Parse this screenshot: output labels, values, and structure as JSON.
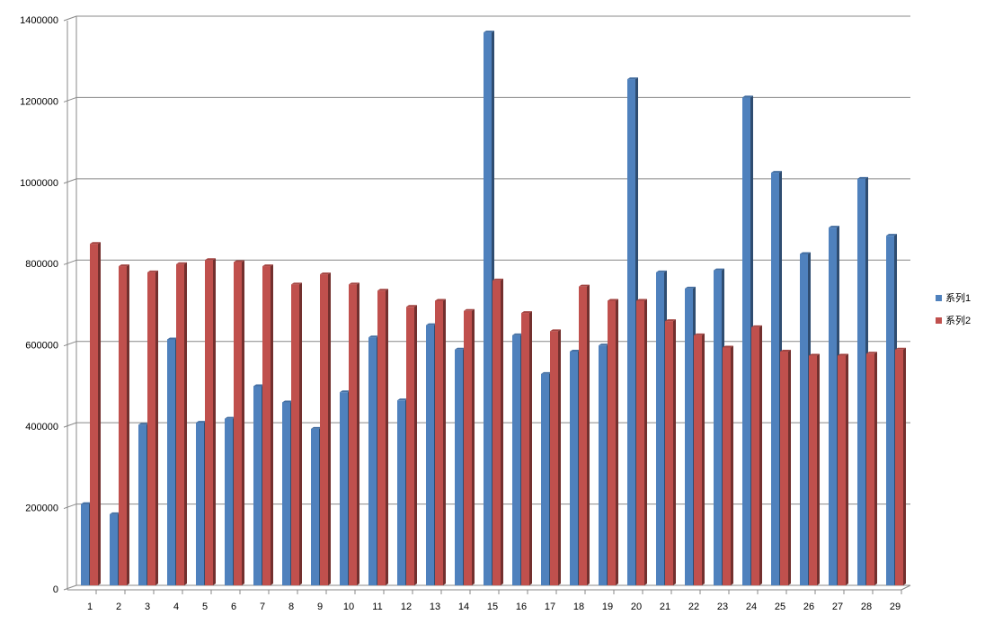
{
  "chart_data": {
    "type": "bar",
    "categories": [
      "1",
      "2",
      "3",
      "4",
      "5",
      "6",
      "7",
      "8",
      "9",
      "10",
      "11",
      "12",
      "13",
      "14",
      "15",
      "16",
      "17",
      "18",
      "19",
      "20",
      "21",
      "22",
      "23",
      "24",
      "25",
      "26",
      "27",
      "28",
      "29"
    ],
    "series": [
      {
        "name": "系列1",
        "color": "#4f81bd",
        "values": [
          200000,
          175000,
          395000,
          605000,
          400000,
          410000,
          490000,
          450000,
          385000,
          475000,
          610000,
          455000,
          640000,
          580000,
          1360000,
          615000,
          520000,
          575000,
          590000,
          1245000,
          770000,
          730000,
          775000,
          1200000,
          1015000,
          815000,
          880000,
          1000000,
          860000
        ]
      },
      {
        "name": "系列2",
        "color": "#c0504d",
        "values": [
          840000,
          785000,
          770000,
          790000,
          800000,
          795000,
          785000,
          740000,
          765000,
          740000,
          725000,
          685000,
          700000,
          675000,
          750000,
          670000,
          625000,
          735000,
          700000,
          700000,
          650000,
          615000,
          585000,
          635000,
          575000,
          565000,
          565000,
          570000,
          580000
        ]
      }
    ],
    "ylim": [
      0,
      1400000
    ],
    "yticks": [
      0,
      200000,
      400000,
      600000,
      800000,
      1000000,
      1200000,
      1400000
    ],
    "grid": true,
    "legend": "right"
  }
}
